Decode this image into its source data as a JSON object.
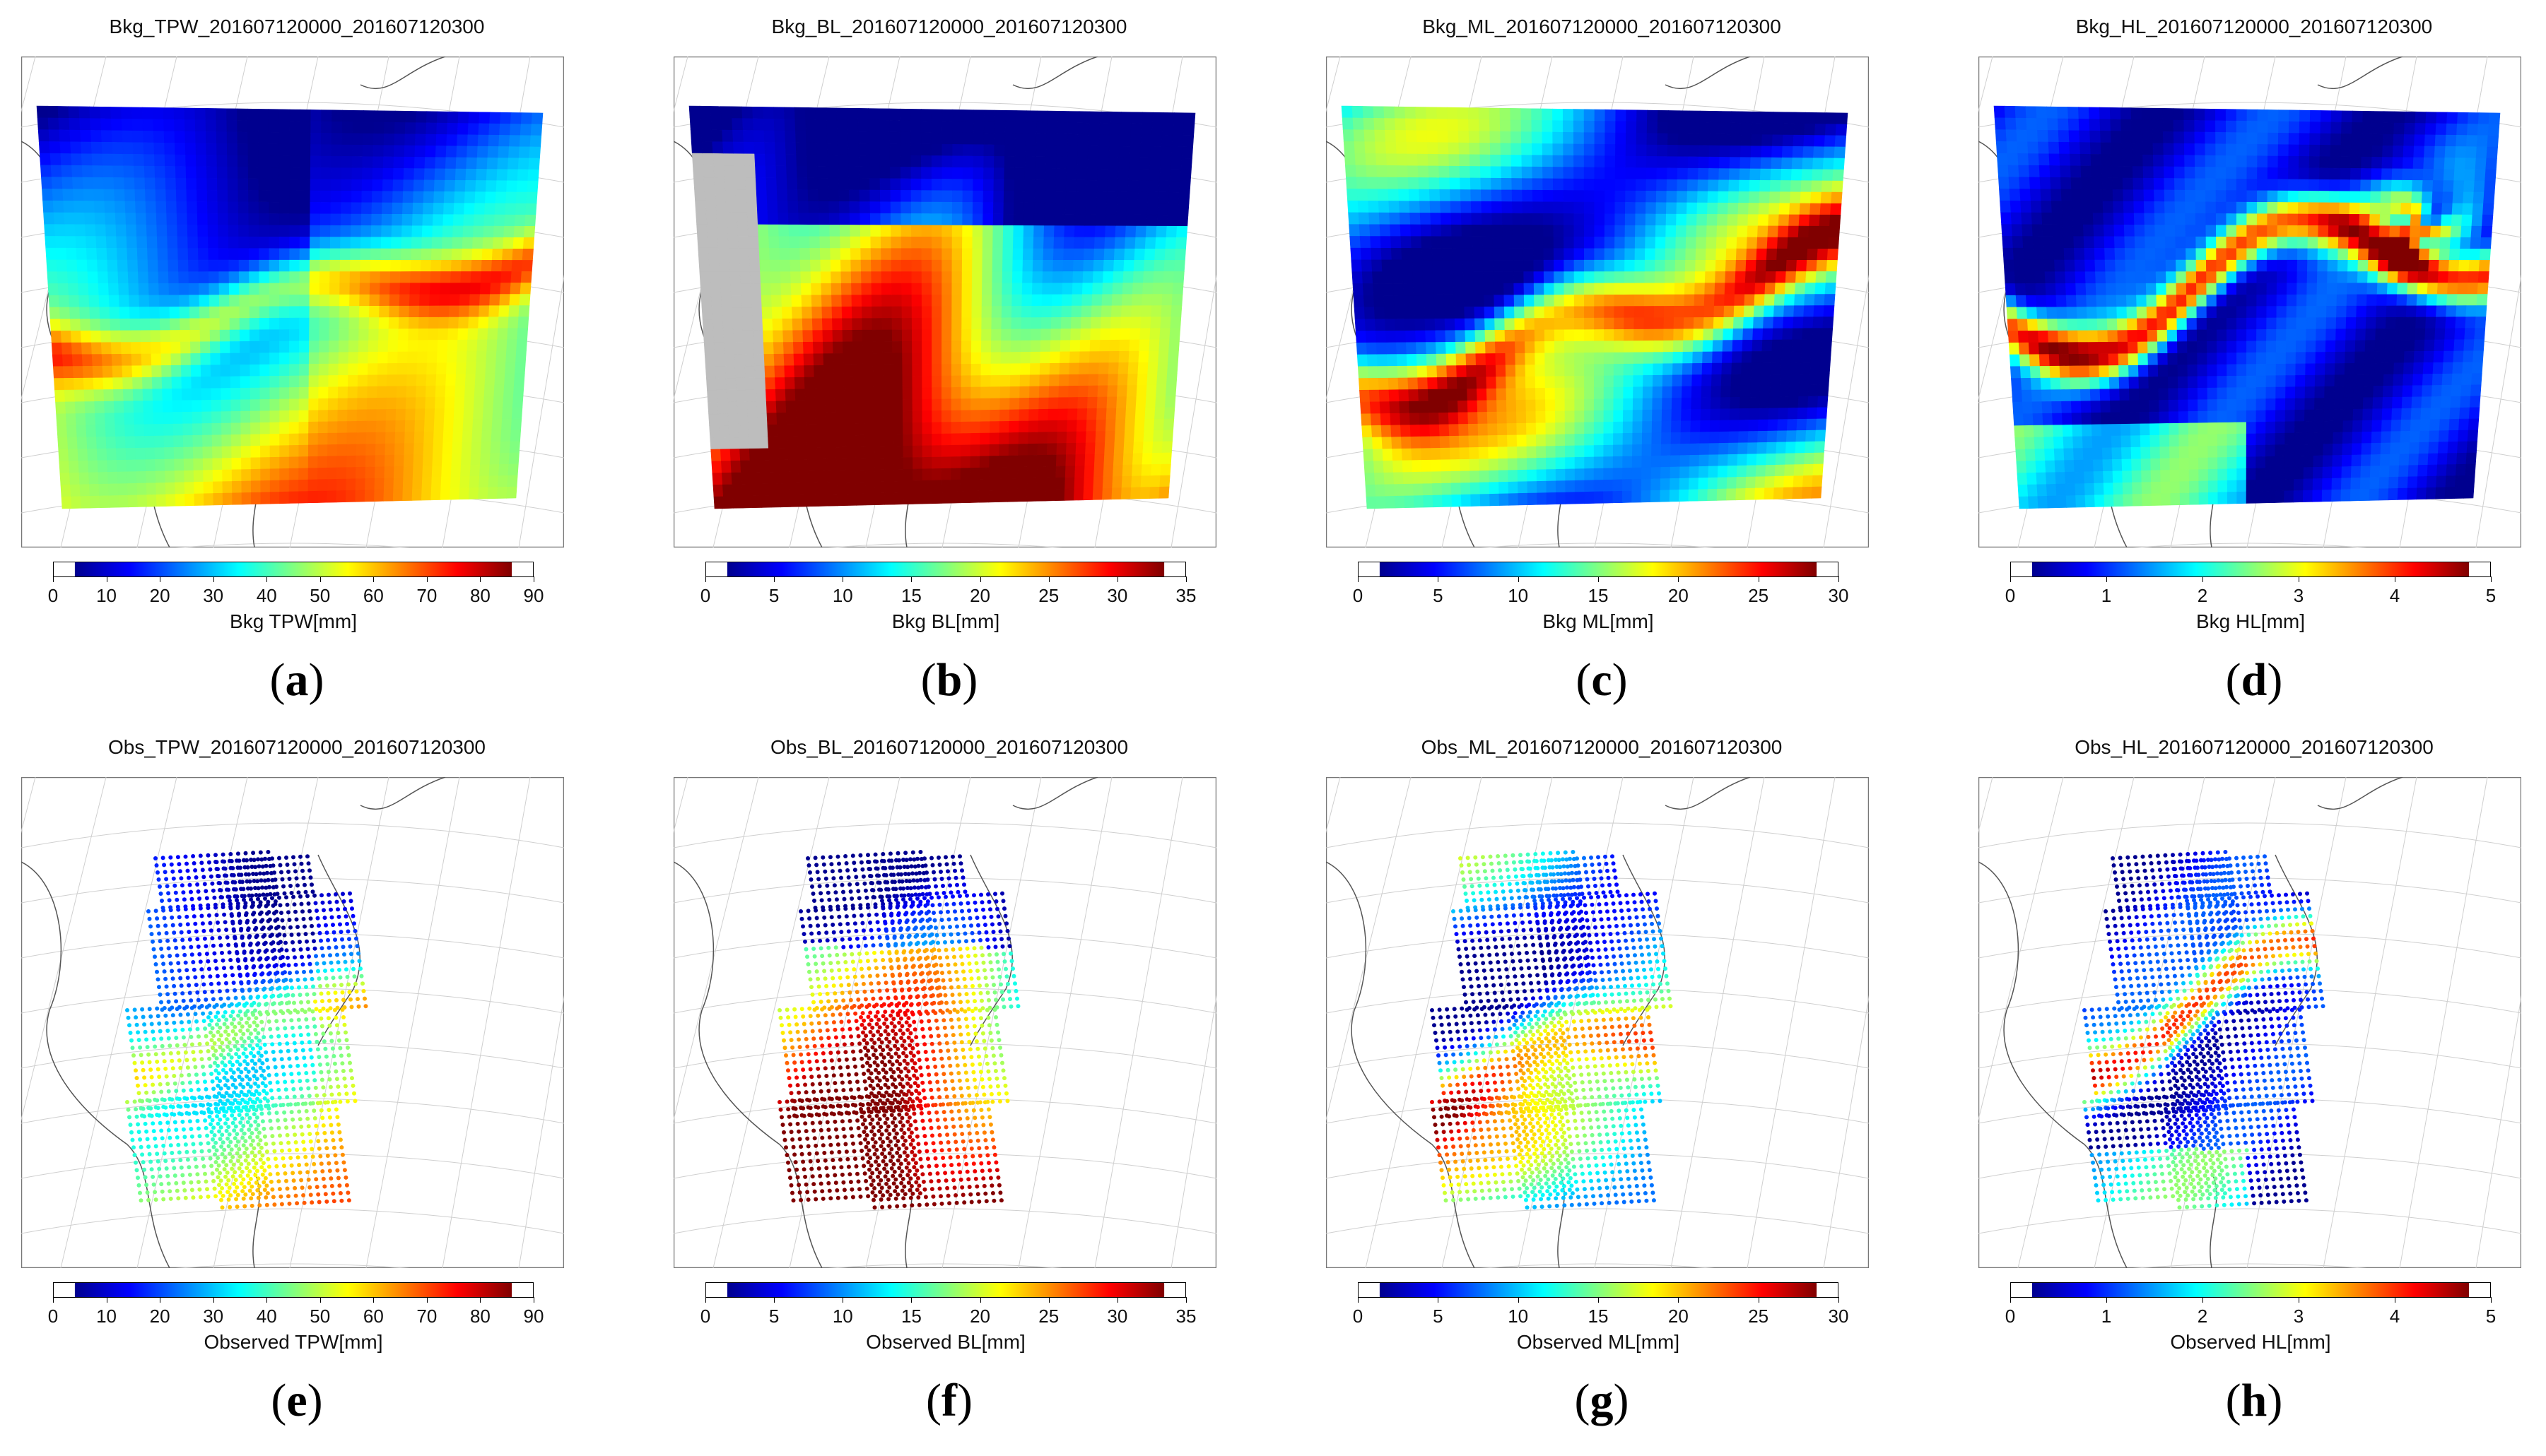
{
  "chart_data": [
    {
      "type": "heatmap",
      "panel": "a",
      "title": "Bkg_TPW_201607120000_201607120300",
      "colorbar_label": "Bkg TPW[mm]",
      "ticks": [
        0,
        10,
        20,
        30,
        40,
        50,
        60,
        70,
        80,
        90
      ],
      "range": [
        0,
        90
      ],
      "style": "field",
      "palette": "tpw"
    },
    {
      "type": "heatmap",
      "panel": "b",
      "title": "Bkg_BL_201607120000_201607120300",
      "colorbar_label": "Bkg BL[mm]",
      "ticks": [
        0,
        5,
        10,
        15,
        20,
        25,
        30,
        35
      ],
      "range": [
        0,
        35
      ],
      "style": "field",
      "palette": "bl"
    },
    {
      "type": "heatmap",
      "panel": "c",
      "title": "Bkg_ML_201607120000_201607120300",
      "colorbar_label": "Bkg ML[mm]",
      "ticks": [
        0,
        5,
        10,
        15,
        20,
        25,
        30
      ],
      "range": [
        0,
        30
      ],
      "style": "field",
      "palette": "ml"
    },
    {
      "type": "heatmap",
      "panel": "d",
      "title": "Bkg_HL_201607120000_201607120300",
      "colorbar_label": "Bkg HL[mm]",
      "ticks": [
        0,
        1,
        2,
        3,
        4,
        5
      ],
      "range": [
        0,
        5
      ],
      "style": "field",
      "palette": "hl"
    },
    {
      "type": "scatter",
      "panel": "e",
      "title": "Obs_TPW_201607120000_201607120300",
      "colorbar_label": "Observed TPW[mm]",
      "ticks": [
        0,
        10,
        20,
        30,
        40,
        50,
        60,
        70,
        80,
        90
      ],
      "range": [
        0,
        90
      ],
      "style": "obs",
      "palette": "tpw"
    },
    {
      "type": "scatter",
      "panel": "f",
      "title": "Obs_BL_201607120000_201607120300",
      "colorbar_label": "Observed BL[mm]",
      "ticks": [
        0,
        5,
        10,
        15,
        20,
        25,
        30,
        35
      ],
      "range": [
        0,
        35
      ],
      "style": "obs",
      "palette": "bl"
    },
    {
      "type": "scatter",
      "panel": "g",
      "title": "Obs_ML_201607120000_201607120300",
      "colorbar_label": "Observed ML[mm]",
      "ticks": [
        0,
        5,
        10,
        15,
        20,
        25,
        30
      ],
      "range": [
        0,
        30
      ],
      "style": "obs",
      "palette": "ml"
    },
    {
      "type": "scatter",
      "panel": "h",
      "title": "Obs_HL_201607120000_201607120300",
      "colorbar_label": "Observed HL[mm]",
      "ticks": [
        0,
        1,
        2,
        3,
        4,
        5
      ],
      "range": [
        0,
        5
      ],
      "style": "obs",
      "palette": "hl"
    }
  ],
  "labels": [
    "(a)",
    "(b)",
    "(c)",
    "(d)",
    "(e)",
    "(f)",
    "(g)",
    "(h)"
  ],
  "colors": {
    "colormap": [
      "#00008f",
      "#0000ff",
      "#0080ff",
      "#00ffff",
      "#80ff80",
      "#ffff00",
      "#ff8000",
      "#ff0000",
      "#800000"
    ],
    "land_mask": "#bdbdbd",
    "grid": "#cfcfcf",
    "coast": "#555555"
  }
}
